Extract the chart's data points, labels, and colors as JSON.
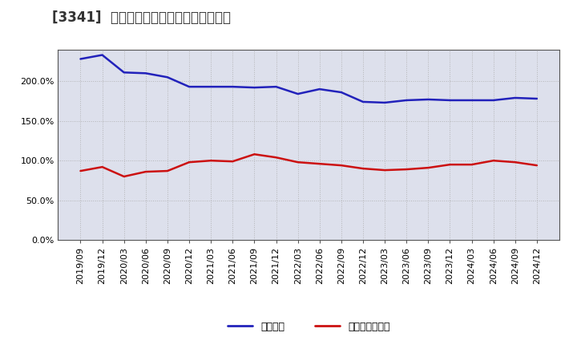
{
  "title": "[3341]  固定比率、固定長期適合率の推移",
  "x_labels": [
    "2019/09",
    "2019/12",
    "2020/03",
    "2020/06",
    "2020/09",
    "2020/12",
    "2021/03",
    "2021/06",
    "2021/09",
    "2021/12",
    "2022/03",
    "2022/06",
    "2022/09",
    "2022/12",
    "2023/03",
    "2023/06",
    "2023/09",
    "2023/12",
    "2024/03",
    "2024/06",
    "2024/09",
    "2024/12"
  ],
  "fixed_ratio": [
    228,
    233,
    211,
    210,
    205,
    193,
    193,
    193,
    192,
    193,
    184,
    190,
    186,
    174,
    173,
    176,
    177,
    176,
    176,
    176,
    179,
    178
  ],
  "fixed_long_ratio": [
    87,
    92,
    80,
    86,
    87,
    98,
    100,
    99,
    108,
    104,
    98,
    96,
    94,
    90,
    88,
    89,
    91,
    95,
    95,
    100,
    98,
    94
  ],
  "ylim": [
    0,
    240
  ],
  "yticks": [
    0,
    50,
    100,
    150,
    200
  ],
  "ytick_labels": [
    "0.0%",
    "50.0%",
    "100.0%",
    "150.0%",
    "200.0%"
  ],
  "line1_color": "#2222bb",
  "line2_color": "#cc1111",
  "line1_label": "固定比率",
  "line2_label": "固定長期適合率",
  "bg_color": "#ffffff",
  "plot_bg_color": "#dde0ec",
  "grid_color": "#aaaaaa",
  "title_fontsize": 12,
  "legend_fontsize": 9,
  "axis_fontsize": 8
}
